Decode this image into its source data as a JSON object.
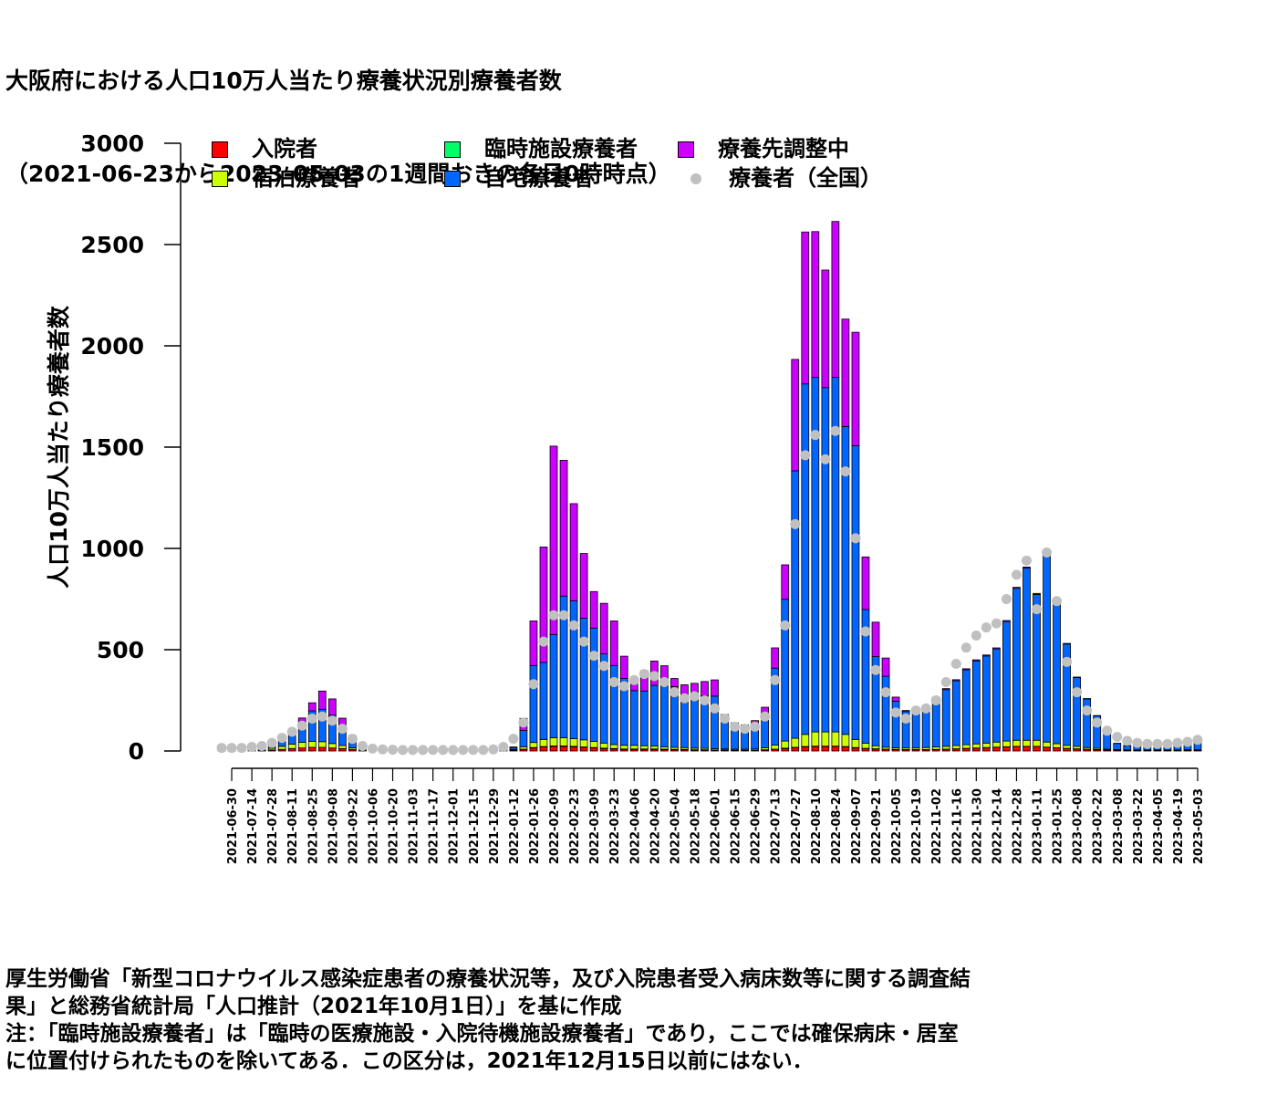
{
  "title": {
    "line1": "大阪府における人口10万人当たり療養状況別療養者数",
    "line2": "（2021-06-23から2023-05-03の1週間おきの各日0時時点）"
  },
  "footnote": {
    "line1": "厚生労働省「新型コロナウイルス感染症患者の療養状況等，及び入院患者受入病床数等に関する調査結",
    "line2": "果」と総務省統計局「人口推計（2021年10月1日）」を基に作成",
    "line3": "注：「臨時施設療養者」は「臨時の医療施設・入院待機施設療養者」であり，ここでは確保病床・居室",
    "line4": "に位置付けられたものを除いてある．この区分は，2021年12月15日以前にはない．"
  },
  "legend": [
    {
      "label": "入院者",
      "color": "#ff0000",
      "kind": "box"
    },
    {
      "label": "臨時施設療養者",
      "color": "#00ff66",
      "kind": "box"
    },
    {
      "label": "療養先調整中",
      "color": "#cc00ff",
      "kind": "box"
    },
    {
      "label": "宿泊療養者",
      "color": "#ccff00",
      "kind": "box"
    },
    {
      "label": "自宅療養者",
      "color": "#0066ff",
      "kind": "box"
    },
    {
      "label": "療養者（全国）",
      "color": "#c0c0c0",
      "kind": "dot"
    }
  ],
  "chart_data": {
    "type": "bar",
    "stacked": true,
    "ylabel": "人口10万人当たり療養者数",
    "ylim": [
      0,
      3000
    ],
    "yticks": [
      0,
      500,
      1000,
      1500,
      2000,
      2500,
      3000
    ],
    "xtick_labels": [
      "2021-06-30",
      "2021-07-14",
      "2021-07-28",
      "2021-08-11",
      "2021-08-25",
      "2021-09-08",
      "2021-09-22",
      "2021-10-06",
      "2021-10-20",
      "2021-11-03",
      "2021-11-17",
      "2021-12-01",
      "2021-12-15",
      "2021-12-29",
      "2022-01-12",
      "2022-01-26",
      "2022-02-09",
      "2022-02-23",
      "2022-03-09",
      "2022-03-23",
      "2022-04-06",
      "2022-04-20",
      "2022-05-04",
      "2022-05-18",
      "2022-06-01",
      "2022-06-15",
      "2022-06-29",
      "2022-07-13",
      "2022-07-27",
      "2022-08-10",
      "2022-08-24",
      "2022-09-07",
      "2022-09-21",
      "2022-10-05",
      "2022-10-19",
      "2022-11-02",
      "2022-11-16",
      "2022-11-30",
      "2022-12-14",
      "2022-12-28",
      "2023-01-11",
      "2023-01-25",
      "2023-02-08",
      "2023-02-22",
      "2023-03-08",
      "2023-03-22",
      "2023-04-05",
      "2023-04-19",
      "2023-05-03"
    ],
    "dates": [
      "2021-06-23",
      "2021-06-30",
      "2021-07-07",
      "2021-07-14",
      "2021-07-21",
      "2021-07-28",
      "2021-08-04",
      "2021-08-11",
      "2021-08-18",
      "2021-08-25",
      "2021-09-01",
      "2021-09-08",
      "2021-09-15",
      "2021-09-22",
      "2021-09-29",
      "2021-10-06",
      "2021-10-13",
      "2021-10-20",
      "2021-10-27",
      "2021-11-03",
      "2021-11-10",
      "2021-11-17",
      "2021-11-24",
      "2021-12-01",
      "2021-12-08",
      "2021-12-15",
      "2021-12-22",
      "2021-12-29",
      "2022-01-05",
      "2022-01-12",
      "2022-01-19",
      "2022-01-26",
      "2022-02-02",
      "2022-02-09",
      "2022-02-16",
      "2022-02-23",
      "2022-03-02",
      "2022-03-09",
      "2022-03-16",
      "2022-03-23",
      "2022-03-30",
      "2022-04-06",
      "2022-04-13",
      "2022-04-20",
      "2022-04-27",
      "2022-05-04",
      "2022-05-11",
      "2022-05-18",
      "2022-05-25",
      "2022-06-01",
      "2022-06-08",
      "2022-06-15",
      "2022-06-22",
      "2022-06-29",
      "2022-07-06",
      "2022-07-13",
      "2022-07-20",
      "2022-07-27",
      "2022-08-03",
      "2022-08-10",
      "2022-08-17",
      "2022-08-24",
      "2022-08-31",
      "2022-09-07",
      "2022-09-14",
      "2022-09-21",
      "2022-09-28",
      "2022-10-05",
      "2022-10-12",
      "2022-10-19",
      "2022-10-26",
      "2022-11-02",
      "2022-11-09",
      "2022-11-16",
      "2022-11-23",
      "2022-11-30",
      "2022-12-07",
      "2022-12-14",
      "2022-12-21",
      "2022-12-28",
      "2023-01-04",
      "2023-01-11",
      "2023-01-18",
      "2023-01-25",
      "2023-02-01",
      "2023-02-08",
      "2023-02-15",
      "2023-02-22",
      "2023-03-01",
      "2023-03-08",
      "2023-03-15",
      "2023-03-22",
      "2023-03-29",
      "2023-04-05",
      "2023-04-12",
      "2023-04-19",
      "2023-04-26",
      "2023-05-03"
    ],
    "series": [
      {
        "name": "入院者",
        "color": "#ff0000",
        "values": [
          2,
          2,
          2,
          2,
          3,
          5,
          8,
          12,
          15,
          18,
          18,
          15,
          12,
          8,
          4,
          3,
          2,
          1,
          1,
          1,
          1,
          1,
          1,
          1,
          1,
          1,
          1,
          1,
          2,
          3,
          8,
          15,
          20,
          22,
          22,
          20,
          18,
          15,
          12,
          10,
          8,
          8,
          8,
          8,
          7,
          6,
          6,
          5,
          5,
          4,
          4,
          3,
          3,
          3,
          5,
          8,
          12,
          16,
          20,
          22,
          22,
          22,
          20,
          15,
          12,
          10,
          8,
          7,
          6,
          6,
          6,
          7,
          8,
          10,
          12,
          14,
          16,
          18,
          20,
          22,
          22,
          22,
          18,
          15,
          12,
          10,
          8,
          6,
          5,
          4,
          3,
          3,
          3,
          3,
          3,
          3,
          4,
          4
        ]
      },
      {
        "name": "宿泊療養者",
        "color": "#ccff00",
        "values": [
          1,
          1,
          1,
          2,
          3,
          8,
          15,
          22,
          28,
          30,
          28,
          22,
          15,
          8,
          3,
          2,
          1,
          1,
          1,
          1,
          1,
          1,
          1,
          1,
          1,
          1,
          1,
          1,
          2,
          4,
          12,
          25,
          35,
          40,
          40,
          38,
          35,
          30,
          25,
          20,
          18,
          18,
          16,
          14,
          12,
          10,
          9,
          8,
          7,
          6,
          5,
          5,
          5,
          6,
          10,
          20,
          35,
          45,
          60,
          70,
          70,
          70,
          60,
          40,
          25,
          15,
          10,
          8,
          8,
          8,
          10,
          12,
          14,
          16,
          18,
          20,
          22,
          25,
          28,
          30,
          30,
          30,
          25,
          20,
          15,
          12,
          8,
          6,
          4,
          3,
          3,
          2,
          2,
          2,
          2,
          2,
          2,
          2
        ]
      },
      {
        "name": "臨時施設療養者",
        "color": "#00ff66",
        "values": [
          0,
          0,
          0,
          0,
          0,
          0,
          0,
          0,
          0,
          0,
          0,
          0,
          0,
          0,
          0,
          0,
          0,
          0,
          0,
          0,
          0,
          0,
          0,
          0,
          0,
          0,
          0,
          0,
          0,
          0,
          1,
          2,
          2,
          3,
          3,
          3,
          2,
          2,
          2,
          2,
          2,
          2,
          2,
          2,
          2,
          2,
          2,
          1,
          1,
          1,
          1,
          1,
          1,
          1,
          1,
          1,
          2,
          2,
          2,
          2,
          2,
          2,
          2,
          2,
          1,
          1,
          1,
          1,
          1,
          1,
          1,
          1,
          1,
          1,
          1,
          1,
          1,
          1,
          1,
          1,
          1,
          1,
          1,
          1,
          1,
          1,
          1,
          1,
          0,
          0,
          0,
          0,
          0,
          0,
          0,
          0,
          0,
          0
        ]
      },
      {
        "name": "自宅療養者",
        "color": "#0066ff",
        "values": [
          3,
          3,
          4,
          5,
          8,
          15,
          30,
          60,
          100,
          150,
          160,
          140,
          95,
          50,
          15,
          6,
          3,
          2,
          1,
          1,
          1,
          1,
          1,
          1,
          1,
          1,
          1,
          1,
          2,
          8,
          80,
          380,
          380,
          510,
          700,
          680,
          600,
          560,
          440,
          390,
          330,
          270,
          270,
          300,
          300,
          300,
          250,
          240,
          260,
          260,
          150,
          110,
          110,
          120,
          170,
          380,
          700,
          1320,
          1730,
          1750,
          1700,
          1750,
          1520,
          1450,
          660,
          440,
          350,
          230,
          180,
          180,
          180,
          240,
          280,
          320,
          370,
          410,
          430,
          460,
          590,
          750,
          850,
          720,
          920,
          700,
          500,
          340,
          240,
          160,
          80,
          30,
          20,
          20,
          20,
          20,
          25,
          25,
          30,
          35
        ]
      },
      {
        "name": "療養先調整中",
        "color": "#cc00ff",
        "values": [
          0,
          0,
          0,
          0,
          0,
          2,
          5,
          10,
          20,
          40,
          90,
          80,
          40,
          10,
          2,
          1,
          0,
          0,
          0,
          0,
          0,
          0,
          0,
          0,
          0,
          0,
          0,
          0,
          0,
          5,
          60,
          220,
          570,
          930,
          670,
          480,
          320,
          180,
          250,
          220,
          110,
          60,
          100,
          120,
          100,
          40,
          60,
          80,
          70,
          80,
          20,
          20,
          10,
          20,
          30,
          100,
          170,
          550,
          750,
          720,
          580,
          770,
          530,
          560,
          260,
          170,
          90,
          20,
          5,
          5,
          5,
          5,
          5,
          5,
          5,
          5,
          5,
          5,
          5,
          5,
          5,
          5,
          5,
          5,
          3,
          2,
          2,
          2,
          2,
          1,
          1,
          1,
          1,
          1,
          1,
          1,
          1,
          1
        ]
      },
      {
        "name": "療養者（全国）",
        "color": "#c0c0c0",
        "kind": "dots",
        "values": [
          15,
          15,
          15,
          20,
          25,
          40,
          65,
          95,
          125,
          160,
          170,
          150,
          110,
          60,
          25,
          12,
          8,
          6,
          5,
          5,
          5,
          5,
          5,
          5,
          5,
          5,
          5,
          8,
          20,
          60,
          140,
          330,
          540,
          670,
          670,
          620,
          540,
          470,
          420,
          340,
          320,
          350,
          380,
          370,
          340,
          290,
          260,
          270,
          250,
          210,
          160,
          120,
          110,
          120,
          170,
          350,
          620,
          1120,
          1460,
          1560,
          1440,
          1580,
          1380,
          1050,
          590,
          400,
          290,
          190,
          160,
          200,
          210,
          250,
          340,
          430,
          510,
          570,
          610,
          630,
          750,
          870,
          940,
          700,
          980,
          740,
          440,
          290,
          200,
          140,
          100,
          70,
          50,
          40,
          35,
          35,
          35,
          40,
          45,
          55
        ]
      }
    ]
  }
}
